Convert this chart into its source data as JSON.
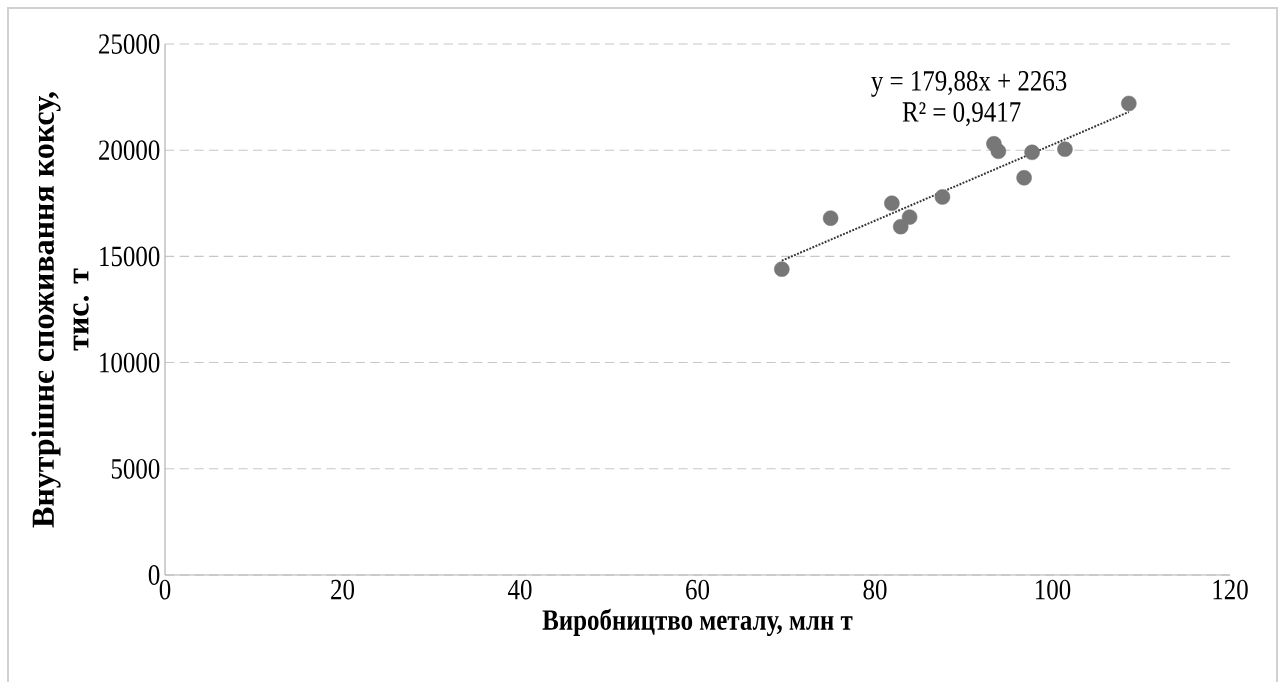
{
  "chart_data": {
    "type": "scatter",
    "xlabel": "Виробництво металу, млн т",
    "ylabel": "Внутрішнє споживання коксу, тис. т",
    "annotations": [
      "y = 179,88x + 2263",
      "R² = 0,9417"
    ],
    "xlim": [
      0,
      120
    ],
    "xticks": [
      0,
      20,
      40,
      60,
      80,
      100,
      120
    ],
    "ylim": [
      0,
      25000
    ],
    "yticks": [
      0,
      5000,
      10000,
      15000,
      20000,
      25000
    ],
    "grid": "y",
    "series": [
      {
        "marker": "circle",
        "color": "#777777",
        "x": [
          69.5,
          75.0,
          81.9,
          82.9,
          83.9,
          87.6,
          93.4,
          93.9,
          96.8,
          97.7,
          101.4,
          108.6
        ],
        "values": [
          14400,
          16800,
          17500,
          16400,
          16850,
          17800,
          20300,
          19950,
          18700,
          19900,
          20050,
          22200
        ]
      },
      {
        "type": "line",
        "marker": "none",
        "line_style": "dotted",
        "color": "#333333",
        "x": [
          69.5,
          108.6
        ],
        "values": [
          14800,
          21800
        ]
      }
    ]
  }
}
